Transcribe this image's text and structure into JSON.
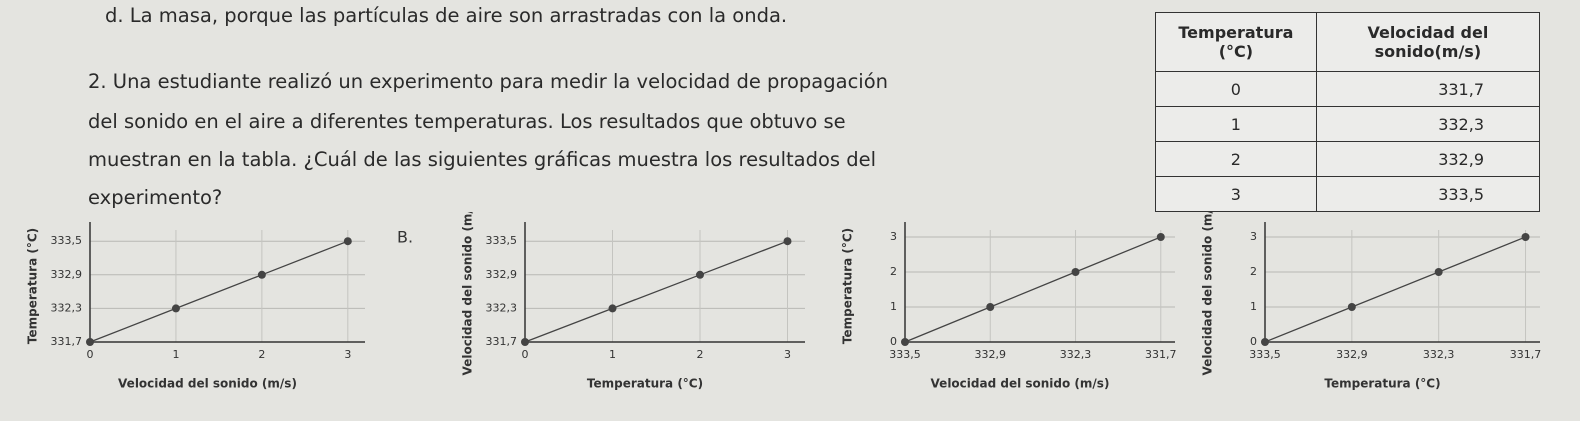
{
  "option_d": "d. La masa, porque las partículas de aire son arrastradas con la onda.",
  "question_lines": [
    "2. Una estudiante realizó un experimento para medir la velocidad de propagación",
    "del sonido en el aire a diferentes temperaturas. Los resultados que obtuvo se",
    "muestran en la tabla. ¿Cuál de las siguientes gráficas muestra los resultados del",
    "experimento?"
  ],
  "table": {
    "headers": [
      "Temperatura (°C)",
      "Velocidad del sonido(m/s)"
    ],
    "rows": [
      [
        "0",
        "331,7"
      ],
      [
        "1",
        "332,3"
      ],
      [
        "2",
        "332,9"
      ],
      [
        "3",
        "333,5"
      ]
    ]
  },
  "chart_data": [
    {
      "type": "line",
      "ylabel": "Temperatura (°C)",
      "xlabel": "Velocidad del sonido (m/s)",
      "x": [
        0,
        1,
        2,
        3
      ],
      "series": [
        {
          "color": "#444444",
          "values": [
            331.7,
            332.3,
            332.9,
            333.5
          ]
        }
      ],
      "xlim": [
        0,
        3.2
      ],
      "ylim": [
        331.7,
        333.7
      ],
      "xticks": [
        0,
        1,
        2,
        3
      ],
      "yticks": [
        {
          "value": 331.7,
          "label": "331,7"
        },
        {
          "value": 332.3,
          "label": "332,3"
        },
        {
          "value": 332.9,
          "label": "332,9"
        },
        {
          "value": 333.5,
          "label": "333,5"
        }
      ],
      "grid": true
    },
    {
      "type": "line",
      "label": "B.",
      "ylabel": "Velocidad del sonido (m/s)",
      "xlabel": "Temperatura (°C)",
      "x": [
        0,
        1,
        2,
        3
      ],
      "series": [
        {
          "color": "#444444",
          "values": [
            331.7,
            332.3,
            332.9,
            333.5
          ]
        }
      ],
      "xlim": [
        0,
        3.2
      ],
      "ylim": [
        331.7,
        333.7
      ],
      "xticks": [
        0,
        1,
        2,
        3
      ],
      "yticks": [
        {
          "value": 331.7,
          "label": "331,7"
        },
        {
          "value": 332.3,
          "label": "332,3"
        },
        {
          "value": 332.9,
          "label": "332,9"
        },
        {
          "value": 333.5,
          "label": "333,5"
        }
      ],
      "grid": true
    },
    {
      "type": "line",
      "ylabel": "Temperatura (°C)",
      "xlabel": "Velocidad del sonido (m/s)",
      "x": [
        333.5,
        332.9,
        332.3,
        331.7
      ],
      "series": [
        {
          "color": "#444444",
          "values": [
            0,
            1,
            2,
            3
          ]
        }
      ],
      "xlim": [
        333.5,
        331.6
      ],
      "ylim": [
        0,
        3.2
      ],
      "xticks": [
        {
          "value": 333.5,
          "label": "333,5"
        },
        {
          "value": 332.9,
          "label": "332,9"
        },
        {
          "value": 332.3,
          "label": "332,3"
        },
        {
          "value": 331.7,
          "label": "331,7"
        }
      ],
      "yticks": [
        0,
        1,
        2,
        3
      ],
      "grid": true
    },
    {
      "type": "line",
      "ylabel": "Velocidad del sonido (m/s)",
      "xlabel": "Temperatura (°C)",
      "x": [
        333.5,
        332.9,
        332.3,
        331.7
      ],
      "series": [
        {
          "color": "#444444",
          "values": [
            0,
            1,
            2,
            3
          ]
        }
      ],
      "xlim": [
        333.5,
        331.6
      ],
      "ylim": [
        0,
        3.2
      ],
      "xticks": [
        {
          "value": 333.5,
          "label": "333,5"
        },
        {
          "value": 332.9,
          "label": "332,9"
        },
        {
          "value": 332.3,
          "label": "332,3"
        },
        {
          "value": 331.7,
          "label": "331,7"
        }
      ],
      "yticks": [
        0,
        1,
        2,
        3
      ],
      "grid": true
    }
  ]
}
